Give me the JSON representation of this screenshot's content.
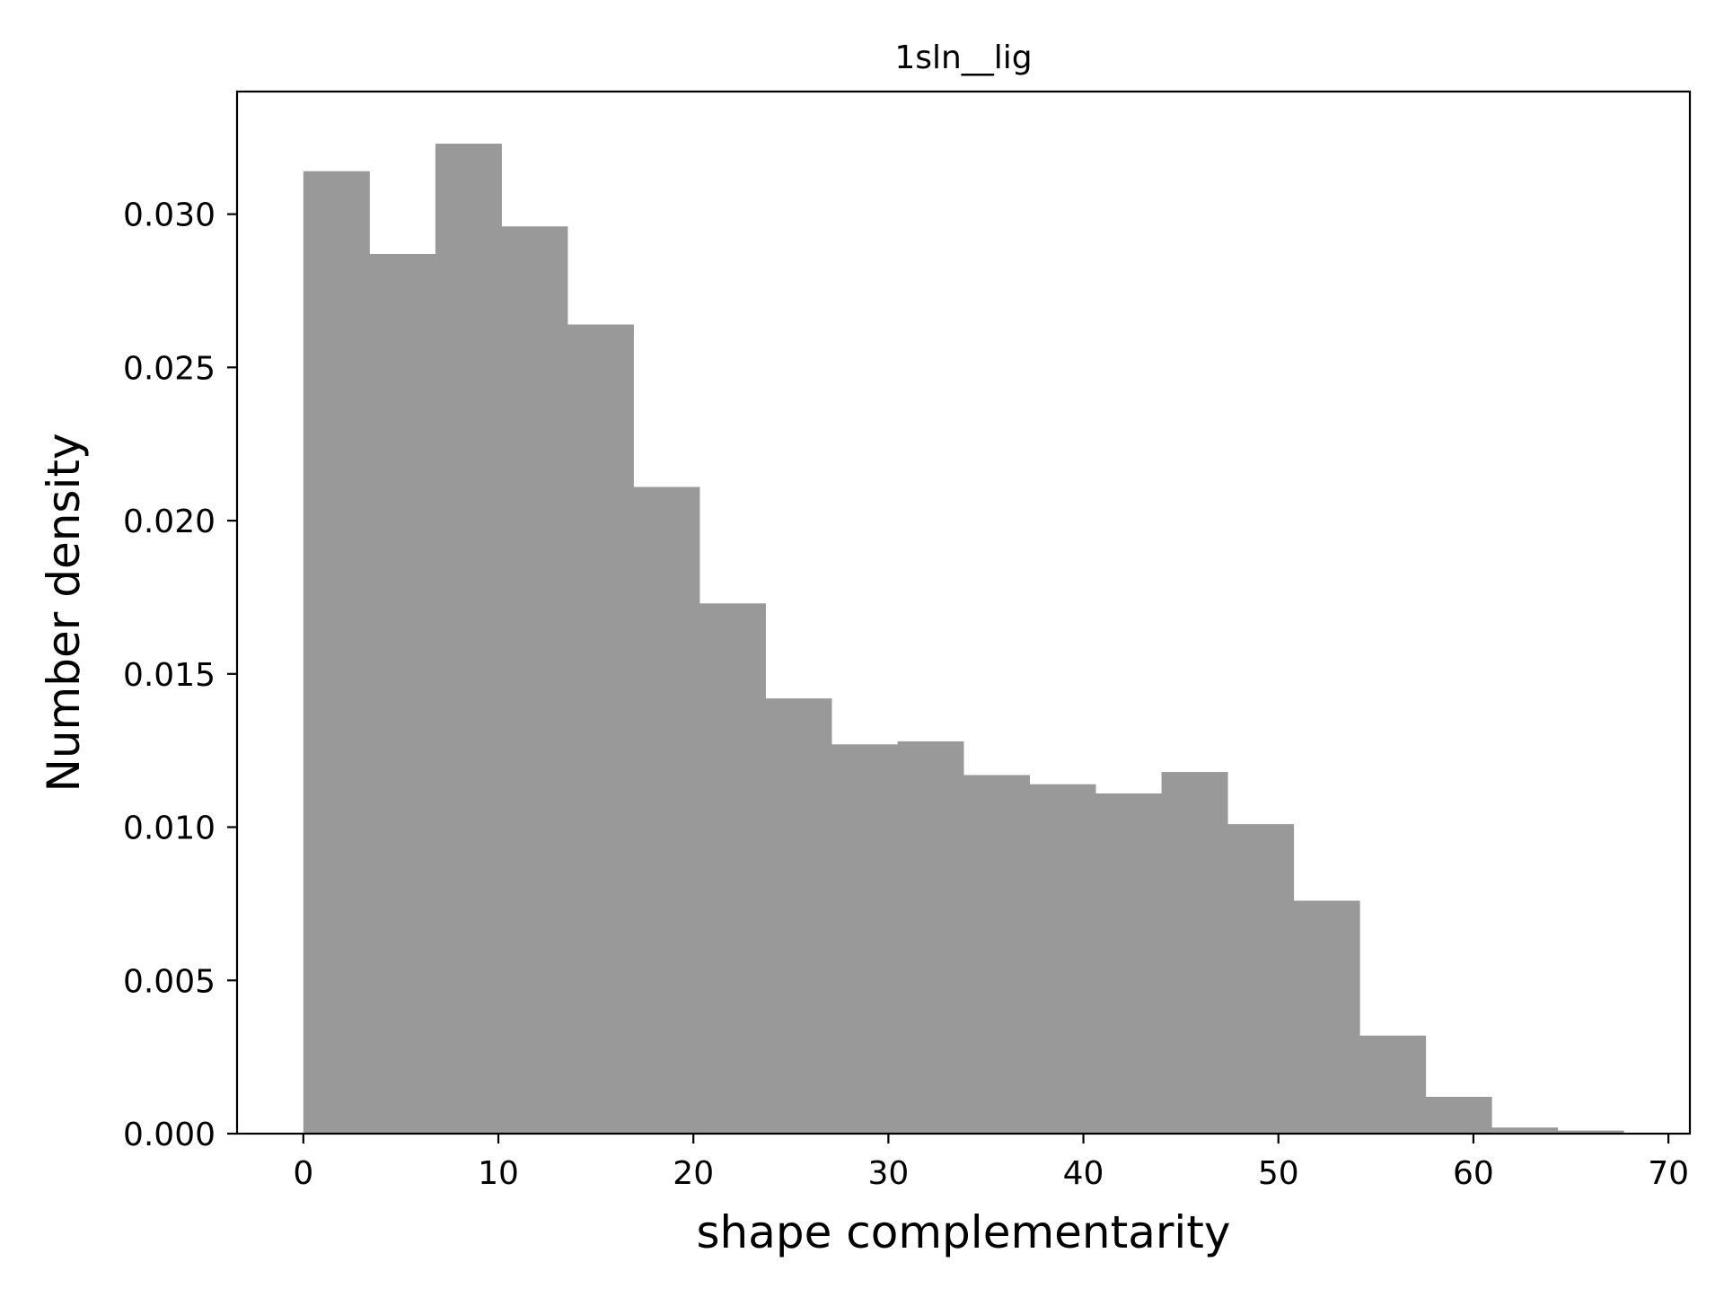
{
  "chart_data": {
    "type": "bar",
    "title": "1sln__lig",
    "xlabel": "shape complementarity",
    "ylabel": "Number density",
    "bin_edges": [
      0,
      3.385,
      6.77,
      10.155,
      13.54,
      16.925,
      20.31,
      23.695,
      27.08,
      30.465,
      33.85,
      37.235,
      40.62,
      44.005,
      47.39,
      50.775,
      54.16,
      57.545,
      60.93,
      64.315,
      67.7
    ],
    "values": [
      0.0314,
      0.0287,
      0.0323,
      0.0296,
      0.0264,
      0.0211,
      0.0173,
      0.0142,
      0.0127,
      0.0128,
      0.0117,
      0.0114,
      0.0111,
      0.0118,
      0.0101,
      0.0076,
      0.0032,
      0.0012,
      0.0002,
      0.0001
    ],
    "xlim": [
      -3.4,
      71.1
    ],
    "ylim": [
      0,
      0.034
    ],
    "xticks": [
      0,
      10,
      20,
      30,
      40,
      50,
      60,
      70
    ],
    "xtick_labels": [
      "0",
      "10",
      "20",
      "30",
      "40",
      "50",
      "60",
      "70"
    ],
    "yticks": [
      0,
      0.005,
      0.01,
      0.015,
      0.02,
      0.025,
      0.03
    ],
    "ytick_labels": [
      "0.000",
      "0.005",
      "0.010",
      "0.015",
      "0.020",
      "0.025",
      "0.030"
    ],
    "bar_color": "#999999",
    "grid": false,
    "legend": "none"
  }
}
